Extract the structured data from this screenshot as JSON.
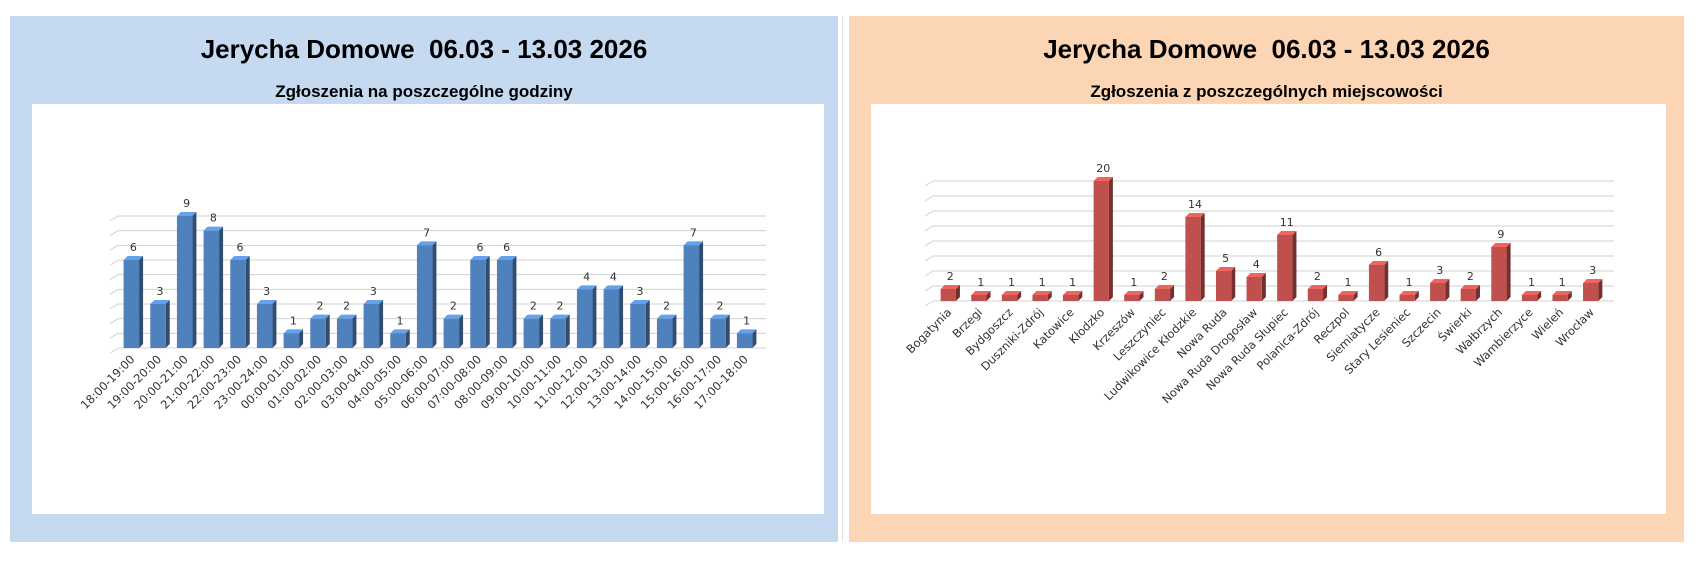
{
  "colors": {
    "left_panel_bg": "#c5d9f1",
    "right_panel_bg": "#fcd5b4",
    "blue_bar": "#4f81bd",
    "red_bar": "#c0504d"
  },
  "chart_data": [
    {
      "type": "bar",
      "title": "Jerycha Domowe  06.03 - 13.03 2026",
      "subtitle": "Zgłoszenia na poszczególne godziny",
      "xlabel": "",
      "ylabel": "",
      "ylim": [
        0,
        9
      ],
      "grid": true,
      "legend": "none",
      "categories": [
        "18:00-19:00",
        "19:00-20:00",
        "20:00-21:00",
        "21:00-22:00",
        "22:00-23:00",
        "23:00-24:00",
        "00:00-01:00",
        "01:00-02:00",
        "02:00-03:00",
        "03:00-04:00",
        "04:00-05:00",
        "05:00-06:00",
        "06:00-07:00",
        "07:00-08:00",
        "08:00-09:00",
        "09:00-10:00",
        "10:00-11:00",
        "11:00-12:00",
        "12:00-13:00",
        "13:00-14:00",
        "14:00-15:00",
        "15:00-16:00",
        "16:00-17:00",
        "17:00-18:00"
      ],
      "values": [
        6,
        3,
        9,
        8,
        6,
        3,
        1,
        2,
        2,
        3,
        1,
        7,
        2,
        6,
        6,
        2,
        2,
        4,
        4,
        3,
        2,
        7,
        2,
        1
      ]
    },
    {
      "type": "bar",
      "title": "Jerycha Domowe  06.03 - 13.03 2026",
      "subtitle": "Zgłoszenia z poszczególnych miejscowości",
      "xlabel": "",
      "ylabel": "",
      "ylim": [
        0,
        20
      ],
      "grid": true,
      "legend": "none",
      "categories": [
        "Bogatynia",
        "Brzegi",
        "Bydgoszcz",
        "Duszniki-Zdrój",
        "Katowice",
        "Kłodzko",
        "Krzeszów",
        "Leszczyniec",
        "Ludwikowice Kłodzkie",
        "Nowa Ruda",
        "Nowa Ruda Drogosław",
        "Nowa Ruda Słupiec",
        "Polanica-Zdrój",
        "Reczpol",
        "Siemiatycze",
        "Stary Lesieniec",
        "Szczecin",
        "Świerki",
        "Wałbrzych",
        "Wambierzyce",
        "Wieleń",
        "Wrocław"
      ],
      "values": [
        2,
        1,
        1,
        1,
        1,
        20,
        1,
        2,
        14,
        5,
        4,
        11,
        2,
        1,
        6,
        1,
        3,
        2,
        9,
        1,
        1,
        3
      ]
    }
  ]
}
